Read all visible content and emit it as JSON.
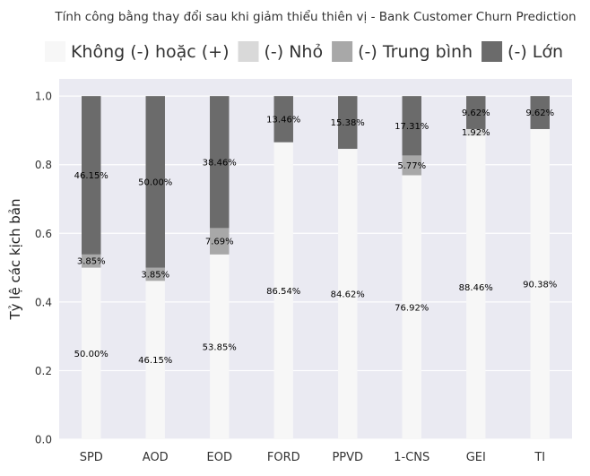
{
  "chart_data": {
    "type": "bar",
    "stacked": true,
    "title": "Tính công bằng thay đổi sau khi giảm thiểu thiên vị - Bank Customer Churn Prediction",
    "xlabel": "",
    "ylabel": "Tỷ lệ các kịch bản",
    "ylim": [
      0,
      1.05
    ],
    "yticks": [
      "0.0",
      "0.2",
      "0.4",
      "0.6",
      "0.8",
      "1.0"
    ],
    "grid": true,
    "legend_position": "top",
    "categories": [
      "SPD",
      "AOD",
      "EOD",
      "FORD",
      "PPVD",
      "1-CNS",
      "GEI",
      "TI"
    ],
    "series": [
      {
        "name": "Không (-) hoặc (+)",
        "color": "#f7f7f7",
        "values": [
          0.5,
          0.4615,
          0.5385,
          0.8654,
          0.8462,
          0.7692,
          0.8846,
          0.9038
        ],
        "labels": [
          "50.00%",
          "46.15%",
          "53.85%",
          "86.54%",
          "84.62%",
          "76.92%",
          "88.46%",
          "90.38%"
        ]
      },
      {
        "name": "(-) Nhỏ",
        "color": "#d9d9d9",
        "values": [
          0,
          0,
          0,
          0,
          0,
          0,
          0.0192,
          0
        ],
        "labels": [
          "",
          "",
          "",
          "",
          "",
          "",
          "1.92%",
          ""
        ]
      },
      {
        "name": "(-) Trung bình",
        "color": "#a8a8a8",
        "values": [
          0.0385,
          0.0385,
          0.0769,
          0,
          0,
          0.0577,
          0,
          0
        ],
        "labels": [
          "3.85%",
          "3.85%",
          "7.69%",
          "",
          "",
          "5.77%",
          "",
          ""
        ]
      },
      {
        "name": "(-) Lớn",
        "color": "#6b6b6b",
        "values": [
          0.4615,
          0.5,
          0.3846,
          0.1346,
          0.1538,
          0.1731,
          0.0962,
          0.0962
        ],
        "labels": [
          "46.15%",
          "50.00%",
          "38.46%",
          "13.46%",
          "15.38%",
          "17.31%",
          "9.62%",
          "9.62%"
        ]
      }
    ]
  }
}
